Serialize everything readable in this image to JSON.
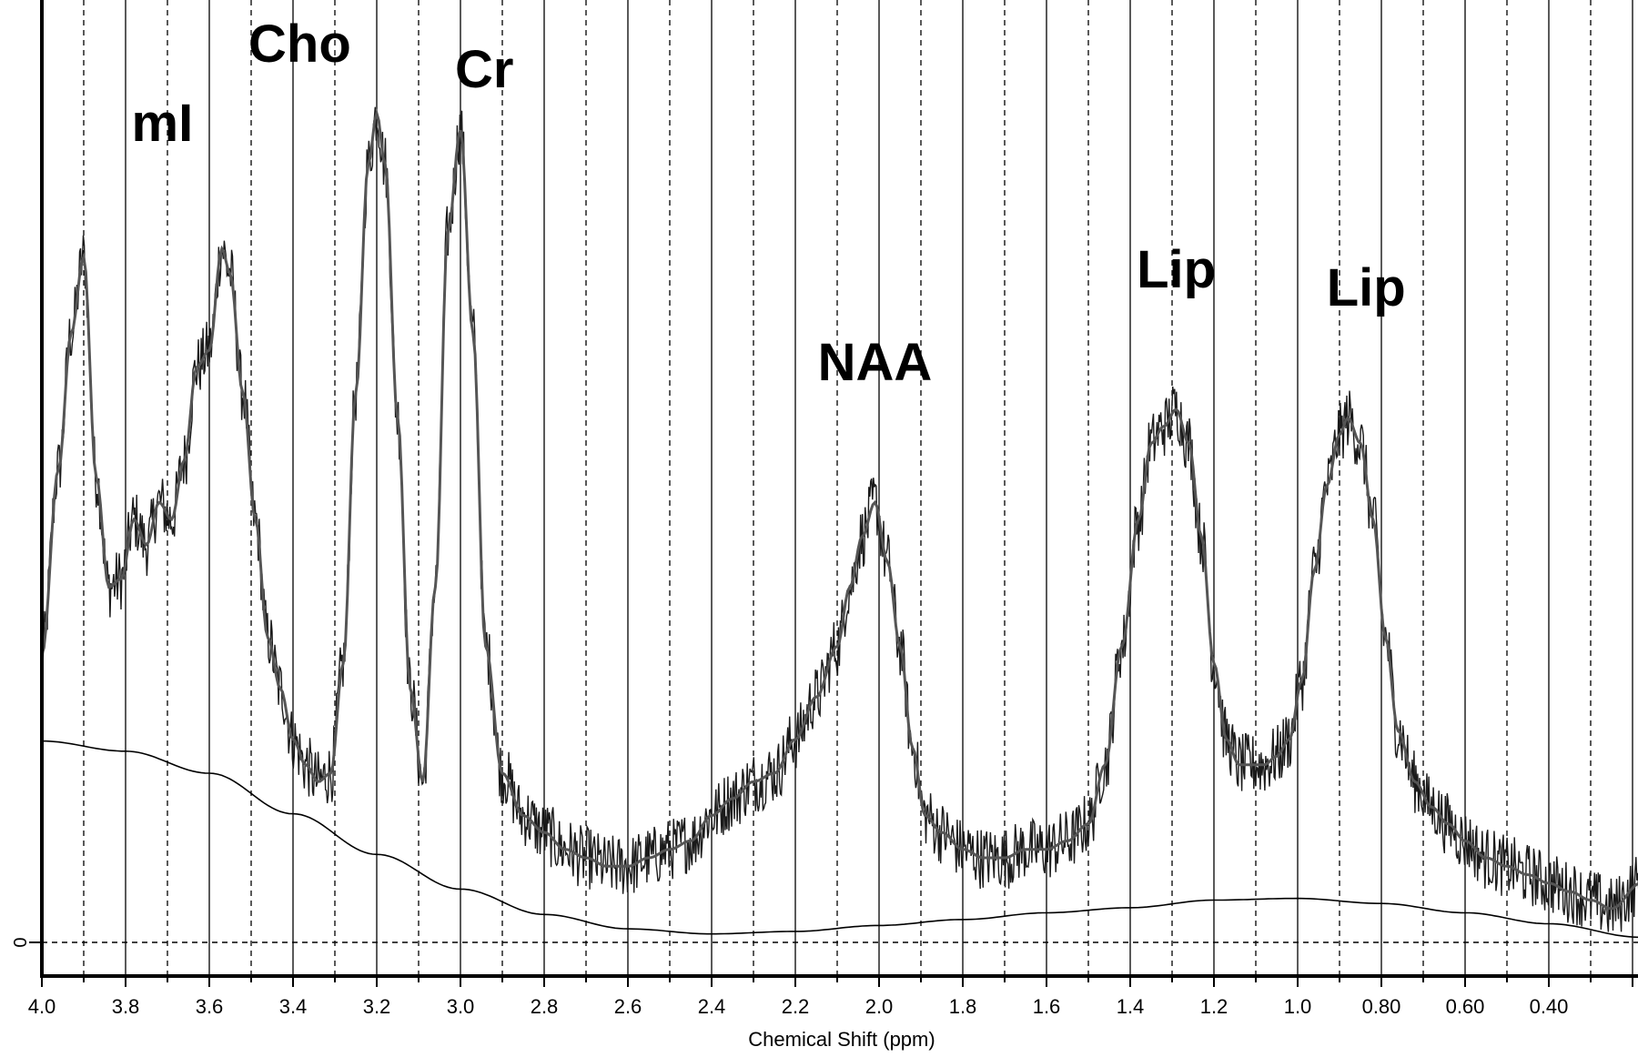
{
  "chart_data": {
    "type": "line",
    "title": "",
    "xlabel": "Chemical Shift (ppm)",
    "ylabel": "",
    "x_axis_reversed": true,
    "xlim": [
      4.0,
      0.18
    ],
    "x_tick_labels": [
      "4.0",
      "3.8",
      "3.6",
      "3.4",
      "3.2",
      "3.0",
      "2.8",
      "2.6",
      "2.4",
      "2.2",
      "2.0",
      "1.8",
      "1.6",
      "1.4",
      "1.2",
      "1.0",
      "0.80",
      "0.60",
      "0.40"
    ],
    "y_tick_labels": [
      "0"
    ],
    "grid": "vertical solid lines every 0.1 ppm (0.2 ppm marks) with dashed lines at odd 0.1 ppm; dashed horizontal line at 0",
    "peak_labels": [
      {
        "text": "mI",
        "ppm": 3.56
      },
      {
        "text": "Cho",
        "ppm": 3.21
      },
      {
        "text": "Cr",
        "ppm": 3.03
      },
      {
        "text": "NAA",
        "ppm": 2.01
      },
      {
        "text": "Lip",
        "ppm": 1.29
      },
      {
        "text": "Lip",
        "ppm": 0.88
      }
    ],
    "series": [
      {
        "name": "",
        "role": "spectrum (noisy data)",
        "color": "#1a1a1a",
        "x": [
          4.0,
          3.96,
          3.93,
          3.9,
          3.87,
          3.84,
          3.81,
          3.78,
          3.75,
          3.72,
          3.69,
          3.66,
          3.63,
          3.6,
          3.57,
          3.55,
          3.52,
          3.49,
          3.46,
          3.43,
          3.4,
          3.37,
          3.34,
          3.31,
          3.28,
          3.25,
          3.22,
          3.2,
          3.18,
          3.15,
          3.12,
          3.09,
          3.06,
          3.03,
          3.0,
          2.97,
          2.94,
          2.9,
          2.85,
          2.8,
          2.75,
          2.7,
          2.65,
          2.6,
          2.55,
          2.5,
          2.45,
          2.4,
          2.35,
          2.3,
          2.25,
          2.2,
          2.15,
          2.1,
          2.07,
          2.04,
          2.01,
          1.98,
          1.95,
          1.92,
          1.89,
          1.85,
          1.8,
          1.75,
          1.7,
          1.65,
          1.6,
          1.55,
          1.5,
          1.46,
          1.42,
          1.38,
          1.35,
          1.32,
          1.29,
          1.26,
          1.23,
          1.2,
          1.17,
          1.14,
          1.11,
          1.08,
          1.05,
          1.02,
          0.99,
          0.96,
          0.93,
          0.9,
          0.88,
          0.85,
          0.82,
          0.79,
          0.76,
          0.72,
          0.68,
          0.64,
          0.6,
          0.55,
          0.5,
          0.45,
          0.4,
          0.35,
          0.3,
          0.25,
          0.18
        ],
        "values": [
          0.34,
          0.56,
          0.72,
          0.81,
          0.55,
          0.42,
          0.43,
          0.5,
          0.47,
          0.52,
          0.5,
          0.57,
          0.68,
          0.7,
          0.82,
          0.79,
          0.65,
          0.5,
          0.36,
          0.3,
          0.24,
          0.21,
          0.19,
          0.2,
          0.33,
          0.65,
          0.92,
          0.98,
          0.92,
          0.62,
          0.3,
          0.19,
          0.42,
          0.84,
          0.96,
          0.72,
          0.35,
          0.2,
          0.15,
          0.13,
          0.11,
          0.1,
          0.09,
          0.09,
          0.1,
          0.11,
          0.12,
          0.15,
          0.17,
          0.19,
          0.2,
          0.24,
          0.29,
          0.35,
          0.42,
          0.48,
          0.52,
          0.45,
          0.35,
          0.23,
          0.15,
          0.13,
          0.11,
          0.1,
          0.1,
          0.11,
          0.11,
          0.12,
          0.14,
          0.21,
          0.35,
          0.5,
          0.59,
          0.61,
          0.63,
          0.59,
          0.48,
          0.33,
          0.24,
          0.21,
          0.21,
          0.21,
          0.22,
          0.24,
          0.31,
          0.44,
          0.54,
          0.6,
          0.62,
          0.59,
          0.5,
          0.36,
          0.25,
          0.19,
          0.16,
          0.14,
          0.12,
          0.1,
          0.09,
          0.08,
          0.07,
          0.06,
          0.05,
          0.04,
          0.07
        ]
      },
      {
        "name": "",
        "role": "fitted curve",
        "color": "#555555",
        "x": [
          4.0,
          3.96,
          3.93,
          3.9,
          3.87,
          3.84,
          3.81,
          3.78,
          3.75,
          3.72,
          3.69,
          3.66,
          3.63,
          3.6,
          3.57,
          3.55,
          3.52,
          3.49,
          3.46,
          3.43,
          3.4,
          3.37,
          3.34,
          3.31,
          3.28,
          3.25,
          3.22,
          3.2,
          3.18,
          3.15,
          3.12,
          3.09,
          3.06,
          3.03,
          3.0,
          2.97,
          2.94,
          2.9,
          2.85,
          2.8,
          2.75,
          2.7,
          2.65,
          2.6,
          2.55,
          2.5,
          2.45,
          2.4,
          2.35,
          2.3,
          2.25,
          2.2,
          2.15,
          2.1,
          2.07,
          2.04,
          2.01,
          1.98,
          1.95,
          1.92,
          1.89,
          1.85,
          1.8,
          1.75,
          1.7,
          1.65,
          1.6,
          1.55,
          1.5,
          1.46,
          1.42,
          1.38,
          1.35,
          1.32,
          1.29,
          1.26,
          1.23,
          1.2,
          1.17,
          1.14,
          1.11,
          1.08,
          1.05,
          1.02,
          0.99,
          0.96,
          0.93,
          0.9,
          0.88,
          0.85,
          0.82,
          0.79,
          0.76,
          0.72,
          0.68,
          0.64,
          0.6,
          0.55,
          0.5,
          0.45,
          0.4,
          0.35,
          0.3,
          0.25,
          0.18
        ],
        "values": [
          0.34,
          0.56,
          0.72,
          0.81,
          0.55,
          0.42,
          0.43,
          0.5,
          0.47,
          0.52,
          0.5,
          0.57,
          0.68,
          0.7,
          0.82,
          0.79,
          0.65,
          0.5,
          0.36,
          0.3,
          0.24,
          0.21,
          0.19,
          0.2,
          0.33,
          0.65,
          0.92,
          0.98,
          0.92,
          0.62,
          0.3,
          0.19,
          0.42,
          0.84,
          0.96,
          0.72,
          0.35,
          0.2,
          0.15,
          0.13,
          0.11,
          0.1,
          0.09,
          0.09,
          0.1,
          0.11,
          0.12,
          0.15,
          0.17,
          0.19,
          0.2,
          0.24,
          0.29,
          0.35,
          0.42,
          0.48,
          0.52,
          0.45,
          0.35,
          0.23,
          0.15,
          0.13,
          0.11,
          0.1,
          0.1,
          0.11,
          0.11,
          0.12,
          0.14,
          0.21,
          0.35,
          0.5,
          0.59,
          0.61,
          0.63,
          0.59,
          0.48,
          0.33,
          0.24,
          0.21,
          0.21,
          0.21,
          0.22,
          0.24,
          0.31,
          0.44,
          0.54,
          0.6,
          0.62,
          0.59,
          0.5,
          0.36,
          0.25,
          0.19,
          0.16,
          0.14,
          0.12,
          0.1,
          0.09,
          0.08,
          0.07,
          0.06,
          0.05,
          0.04,
          0.07
        ]
      },
      {
        "name": "",
        "role": "baseline",
        "color": "#000000",
        "x": [
          4.0,
          3.8,
          3.6,
          3.4,
          3.2,
          3.0,
          2.8,
          2.6,
          2.4,
          2.2,
          2.0,
          1.8,
          1.6,
          1.4,
          1.2,
          1.0,
          0.8,
          0.6,
          0.4,
          0.18
        ],
        "values": [
          0.238,
          0.226,
          0.2,
          0.152,
          0.104,
          0.063,
          0.033,
          0.016,
          0.01,
          0.013,
          0.02,
          0.027,
          0.035,
          0.041,
          0.05,
          0.052,
          0.046,
          0.035,
          0.022,
          0.006
        ]
      }
    ]
  }
}
